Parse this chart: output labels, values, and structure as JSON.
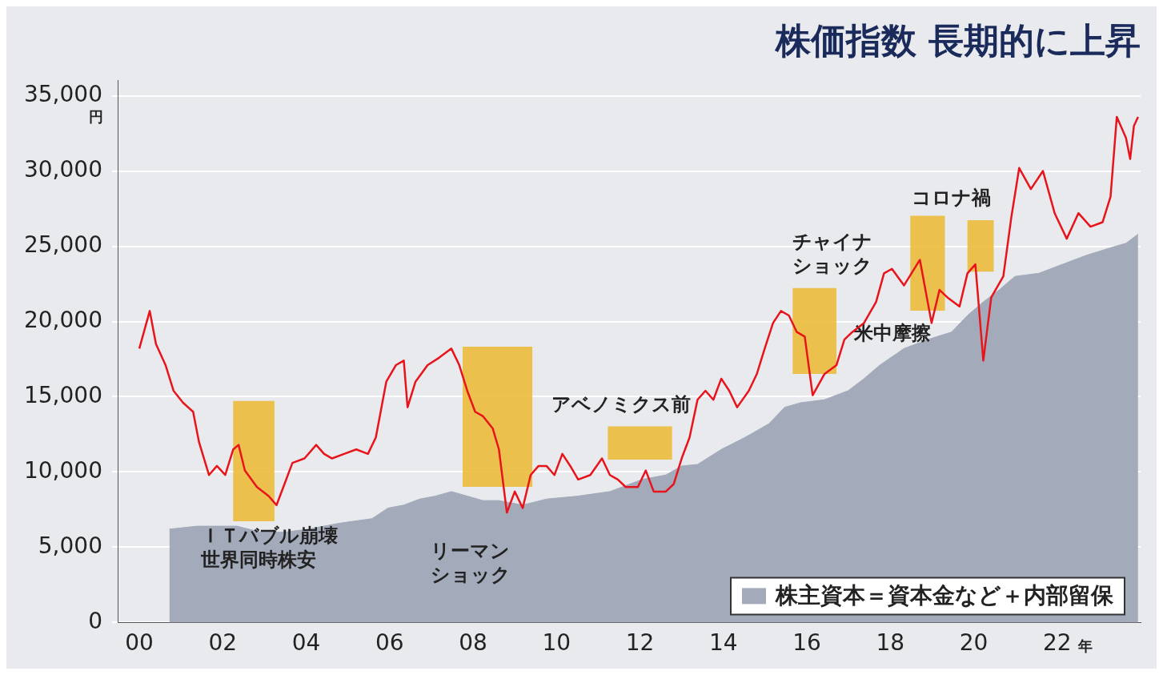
{
  "chart_data": {
    "type": "line",
    "title": "株価指数 長期的に上昇",
    "ylabel": "円",
    "xlabel": "年",
    "xlim": [
      1999.5,
      2024
    ],
    "xticks": [
      {
        "value": 2000,
        "label": "00"
      },
      {
        "value": 2002,
        "label": "02"
      },
      {
        "value": 2004,
        "label": "04"
      },
      {
        "value": 2006,
        "label": "06"
      },
      {
        "value": 2008,
        "label": "08"
      },
      {
        "value": 2010,
        "label": "10"
      },
      {
        "value": 2012,
        "label": "12"
      },
      {
        "value": 2014,
        "label": "14"
      },
      {
        "value": 2016,
        "label": "16"
      },
      {
        "value": 2018,
        "label": "18"
      },
      {
        "value": 2020,
        "label": "20"
      },
      {
        "value": 2022,
        "label": "22"
      }
    ],
    "ylim": [
      0,
      36000
    ],
    "yticks": [
      0,
      {
        "value": 5000,
        "label": "5,000"
      },
      {
        "value": 10000,
        "label": "10,000"
      },
      {
        "value": 15000,
        "label": "15,000"
      },
      {
        "value": 20000,
        "label": "20,000"
      },
      {
        "value": 25000,
        "label": "25,000"
      },
      {
        "value": 30000,
        "label": "30,000"
      },
      {
        "value": 35000,
        "label": "35,000"
      }
    ],
    "grid": "y",
    "legend": "bottom right",
    "series": [
      {
        "color": "#e8141c",
        "x": [
          2000.0,
          2000.25,
          2000.4,
          2000.63,
          2000.82,
          2001.05,
          2001.29,
          2001.43,
          2001.67,
          2001.86,
          2002.06,
          2002.25,
          2002.38,
          2002.53,
          2002.82,
          2003.1,
          2003.29,
          2003.48,
          2003.67,
          2003.96,
          2004.24,
          2004.43,
          2004.62,
          2004.91,
          2005.2,
          2005.48,
          2005.67,
          2005.92,
          2006.15,
          2006.34,
          2006.43,
          2006.62,
          2006.91,
          2007.19,
          2007.48,
          2007.67,
          2007.86,
          2008.05,
          2008.24,
          2008.47,
          2008.62,
          2008.81,
          2009.0,
          2009.19,
          2009.38,
          2009.57,
          2009.76,
          2009.95,
          2010.14,
          2010.33,
          2010.52,
          2010.81,
          2011.09,
          2011.28,
          2011.47,
          2011.66,
          2011.95,
          2012.14,
          2012.33,
          2012.62,
          2012.81,
          2013.0,
          2013.19,
          2013.38,
          2013.57,
          2013.76,
          2013.95,
          2014.14,
          2014.33,
          2014.61,
          2014.8,
          2014.99,
          2015.19,
          2015.38,
          2015.57,
          2015.76,
          2015.95,
          2016.14,
          2016.42,
          2016.71,
          2016.9,
          2017.09,
          2017.37,
          2017.66,
          2017.85,
          2018.04,
          2018.33,
          2018.71,
          2018.99,
          2019.18,
          2019.37,
          2019.66,
          2019.85,
          2020.04,
          2020.23,
          2020.42,
          2020.71,
          2020.9,
          2021.09,
          2021.37,
          2021.66,
          2021.94,
          2022.23,
          2022.51,
          2022.8,
          2023.09,
          2023.28,
          2023.43,
          2023.65,
          2023.75,
          2023.84,
          2023.94
        ],
        "values": [
          18200,
          20700,
          18500,
          17100,
          15400,
          14600,
          14000,
          12000,
          9800,
          10400,
          9800,
          11500,
          11800,
          10100,
          9000,
          8400,
          7800,
          9200,
          10600,
          10900,
          11800,
          11200,
          10900,
          11200,
          11500,
          11200,
          12300,
          16000,
          17100,
          17400,
          14300,
          16000,
          17100,
          17600,
          18200,
          17100,
          15400,
          14000,
          13700,
          12900,
          11500,
          7300,
          8700,
          7600,
          9800,
          10400,
          10400,
          9800,
          11200,
          10400,
          9500,
          9800,
          10900,
          9800,
          9500,
          9000,
          9000,
          10100,
          8700,
          8700,
          9200,
          10900,
          12300,
          14800,
          15400,
          14800,
          16200,
          15400,
          14300,
          15400,
          16500,
          18200,
          19900,
          20700,
          20400,
          19300,
          19000,
          15100,
          16500,
          17100,
          18800,
          19300,
          19900,
          21300,
          23200,
          23500,
          22400,
          24100,
          19900,
          22100,
          21600,
          21000,
          23200,
          23800,
          17400,
          21600,
          23000,
          26900,
          30200,
          28800,
          30000,
          27200,
          25500,
          27200,
          26300,
          26600,
          28300,
          33600,
          32200,
          30800,
          33000,
          33600
        ]
      },
      {
        "type": "area",
        "name": "株主資本＝資本金など＋内部留保",
        "color": "#a3aaba",
        "x": [
          2000.72,
          2001.39,
          2002.34,
          2002.91,
          2003.48,
          2004.05,
          2004.81,
          2005.58,
          2005.96,
          2006.34,
          2006.72,
          2007.1,
          2007.48,
          2007.86,
          2008.24,
          2008.62,
          2009.19,
          2009.76,
          2010.52,
          2011.28,
          2012.05,
          2012.62,
          2013.0,
          2013.38,
          2013.95,
          2014.52,
          2015.09,
          2015.47,
          2015.85,
          2016.42,
          2016.99,
          2017.37,
          2017.75,
          2018.33,
          2018.9,
          2019.47,
          2019.85,
          2020.23,
          2020.61,
          2020.99,
          2021.56,
          2022.13,
          2022.7,
          2023.28,
          2023.65,
          2023.94
        ],
        "values": [
          6200,
          6400,
          6400,
          6000,
          6000,
          6200,
          6600,
          6900,
          7600,
          7800,
          8200,
          8400,
          8700,
          8400,
          8100,
          8100,
          7800,
          8200,
          8400,
          8700,
          9500,
          9800,
          10400,
          10500,
          11500,
          12300,
          13200,
          14300,
          14600,
          14800,
          15400,
          16200,
          17100,
          18200,
          18800,
          19300,
          20400,
          21300,
          22100,
          23000,
          23200,
          23800,
          24400,
          24900,
          25200,
          25800
        ]
      }
    ],
    "bands": [
      {
        "axis": "x",
        "from": 2002.25,
        "to": 2003.24,
        "label": "ＩＴバブル崩壊世界同時株安",
        "color": "#ecbb3a"
      },
      {
        "axis": "x",
        "from": 2007.75,
        "to": 2009.42,
        "label": "リーマンショック",
        "color": "#ecbb3a"
      },
      {
        "axis": "x",
        "from": 2011.23,
        "to": 2012.77,
        "label": "アベノミクス前",
        "color": "#ecbb3a"
      },
      {
        "axis": "x",
        "from": 2015.66,
        "to": 2016.71,
        "label": "チャイナショック",
        "color": "#ecbb3a"
      },
      {
        "axis": "x",
        "from": 2018.48,
        "to": 2019.31,
        "label": "米中摩擦",
        "color": "#ecbb3a"
      },
      {
        "axis": "x",
        "from": 2019.85,
        "to": 2020.48,
        "label": "コロナ禍",
        "color": "#ecbb3a"
      }
    ]
  }
}
